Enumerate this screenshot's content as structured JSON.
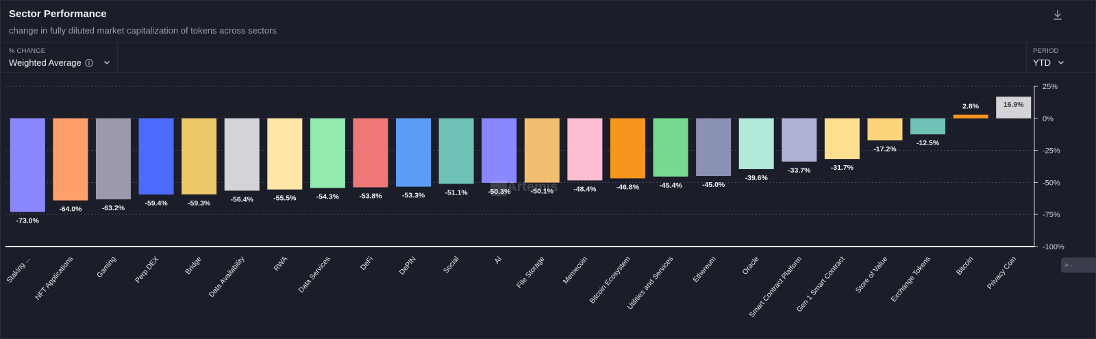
{
  "header": {
    "title": "Sector Performance",
    "subtitle": "change in fully diluted market capitalization of tokens across sectors"
  },
  "controls": {
    "change_label": "% CHANGE",
    "change_value": "Weighted Average",
    "period_label": "PERIOD",
    "period_value": "YTD"
  },
  "side_tab": {
    "label": "> ·"
  },
  "watermark": "Artemis",
  "icons": {
    "download": "download-icon",
    "info": "info-icon",
    "chevron": "chevron-down-icon"
  },
  "colors": {
    "background": "#1b1d29",
    "axis": "#ffffff",
    "grid": "#4a4d5c"
  },
  "chart_data": {
    "type": "bar",
    "title": "Sector Performance",
    "ylim": [
      -100,
      25
    ],
    "yticks": [
      25,
      0,
      -25,
      -50,
      -75,
      -100
    ],
    "ytick_labels": [
      "25%",
      "0%",
      "-25%",
      "-50%",
      "-75%",
      "-100%"
    ],
    "y_axis_position": "right",
    "grid": true,
    "categories": [
      "Staking ...",
      "NFT Applications",
      "Gaming",
      "Perp DEX",
      "Bridge",
      "Data Availability",
      "RWA",
      "Data Services",
      "DeFi",
      "DePIN",
      "Social",
      "AI",
      "File Storage",
      "Memecoin",
      "Bitcoin Ecosystem",
      "Utilities and Services",
      "Ethereum",
      "Oracle",
      "Smart Contract Platform",
      "Gen 1 Smart Contract",
      "Store of Value",
      "Exchange Tokens",
      "Bitcoin",
      "Privacy Coin"
    ],
    "values": [
      -73.0,
      -64.0,
      -63.2,
      -59.4,
      -59.3,
      -56.4,
      -55.5,
      -54.3,
      -53.8,
      -53.3,
      -51.1,
      -50.3,
      -50.1,
      -48.4,
      -46.8,
      -45.4,
      -45.0,
      -39.6,
      -33.7,
      -31.7,
      -17.2,
      -12.5,
      2.8,
      16.9
    ],
    "value_labels": [
      "-73.0%",
      "-64.0%",
      "-63.2%",
      "-59.4%",
      "-59.3%",
      "-56.4%",
      "-55.5%",
      "-54.3%",
      "-53.8%",
      "-53.3%",
      "-51.1%",
      "-50.3%",
      "-50.1%",
      "-48.4%",
      "-46.8%",
      "-45.4%",
      "-45.0%",
      "-39.6%",
      "-33.7%",
      "-31.7%",
      "-17.2%",
      "-12.5%",
      "2.8%",
      "16.9%"
    ],
    "colors": [
      "#8b88ff",
      "#ff9f6b",
      "#9b9aab",
      "#4d6bff",
      "#ecca6a",
      "#d4d4d8",
      "#fee5a8",
      "#93ebaf",
      "#ef7777",
      "#5b9ef9",
      "#6fc2b6",
      "#8b88ff",
      "#f2bf70",
      "#fcbed0",
      "#f7951d",
      "#78d990",
      "#8a91b2",
      "#b4eadb",
      "#b0b2d8",
      "#fedf92",
      "#fdd37b",
      "#6fc2b6",
      "#f7951d",
      "#d4d4d8"
    ]
  }
}
